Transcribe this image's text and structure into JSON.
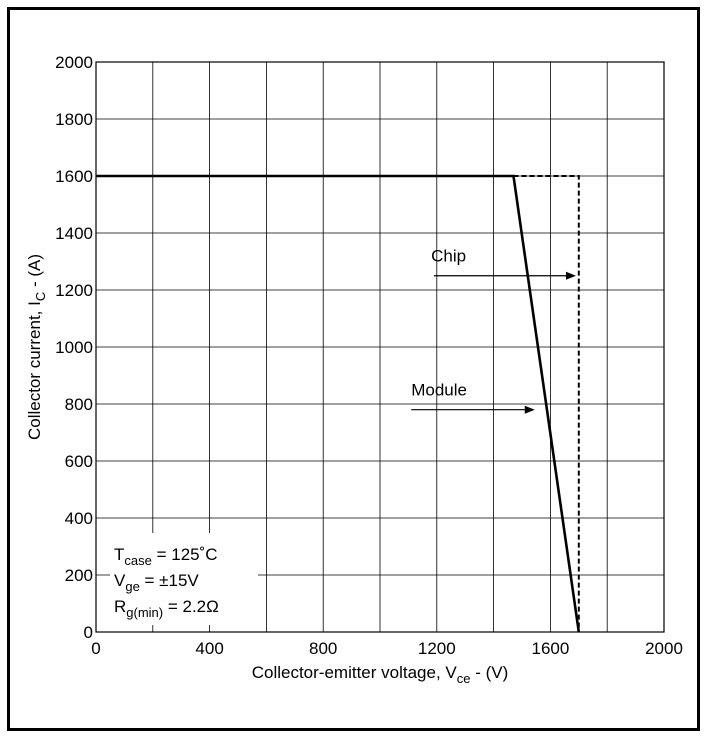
{
  "chart_data": {
    "type": "line",
    "xlabel": {
      "main": "Collector-emitter voltage, V",
      "sub": "ce",
      "unit": " - (V)"
    },
    "ylabel": {
      "main": "Collector current, I",
      "sub": "C",
      "unit": " - (A)"
    },
    "xlim": [
      0,
      2000
    ],
    "ylim": [
      0,
      2000
    ],
    "x_ticks": [
      0,
      400,
      800,
      1200,
      1600,
      2000
    ],
    "y_ticks": [
      0,
      200,
      400,
      600,
      800,
      1000,
      1200,
      1400,
      1600,
      1800,
      2000
    ],
    "grid": true,
    "series": [
      {
        "name": "Module",
        "style": "solid",
        "points": [
          [
            0,
            1600
          ],
          [
            1470,
            1600
          ],
          [
            1700,
            0
          ]
        ]
      },
      {
        "name": "Chip",
        "style": "dashed",
        "points": [
          [
            1470,
            1600
          ],
          [
            1700,
            1600
          ],
          [
            1700,
            0
          ]
        ]
      }
    ],
    "annotations": [
      {
        "text": "Chip",
        "arrow_from": [
          1190,
          1250
        ],
        "arrow_to": [
          1690,
          1250
        ],
        "text_at": [
          1180,
          1300
        ]
      },
      {
        "text": "Module",
        "arrow_from": [
          1110,
          780
        ],
        "arrow_to": [
          1545,
          780
        ],
        "text_at": [
          1110,
          830
        ]
      }
    ],
    "conditions": [
      {
        "main": "T",
        "sub": "case",
        "rest": " = 125˚C"
      },
      {
        "main": "V",
        "sub": "ge",
        "rest": " = ±15V"
      },
      {
        "main": "R",
        "sub": "g(min)",
        "rest": " = 2.2Ω"
      }
    ]
  }
}
